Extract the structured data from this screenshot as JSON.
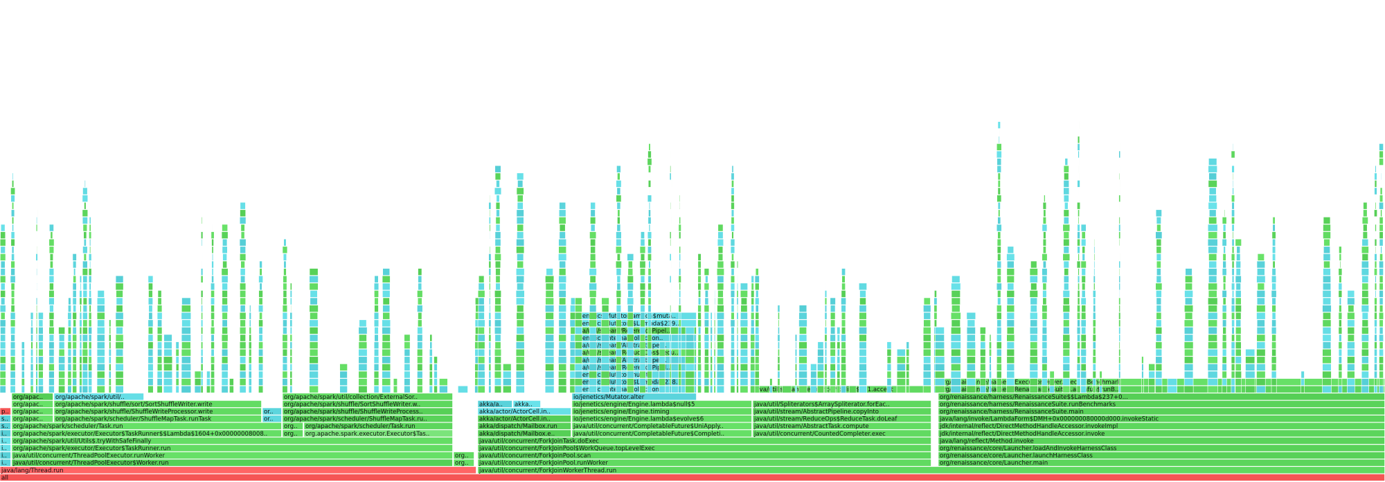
{
  "palette": {
    "java": "#5fd85f",
    "jit": "#5fd8e0",
    "native": "#ff5f5f",
    "inlined": "#7fe87f",
    "kernel": "#e8c85f"
  },
  "chart_data": {
    "type": "flamegraph",
    "orientation": "icicle-bottom-up",
    "title": "",
    "xlabel": "",
    "ylabel": "",
    "total_width_units": 2000,
    "root": {
      "name": "all",
      "start": 0,
      "width": 2000,
      "kind": "native"
    },
    "frames": [
      {
        "name": "java/lang/Thread.run",
        "start": 0,
        "width": 688,
        "depth": 1,
        "kind": "native"
      },
      {
        "name": "java/util/concurrent/ForkJoinWorkerThread.run",
        "start": 690,
        "width": 1310,
        "depth": 1,
        "kind": "java"
      },
      {
        "name": "io...",
        "start": 0,
        "width": 16,
        "depth": 2,
        "kind": "jit"
      },
      {
        "name": "java/util/concurrent/ThreadPoolExecutor$Worker.run",
        "start": 17,
        "width": 637,
        "depth": 2,
        "kind": "java"
      },
      {
        "name": "org/sp...",
        "start": 655,
        "width": 30,
        "depth": 2,
        "kind": "java"
      },
      {
        "name": "java/util/concurrent/ForkJoinPool.runWorker",
        "start": 690,
        "width": 655,
        "depth": 2,
        "kind": "java"
      },
      {
        "name": "org/renaissance/core/Launcher.main",
        "start": 1355,
        "width": 645,
        "depth": 2,
        "kind": "java"
      },
      {
        "name": "io...",
        "start": 0,
        "width": 16,
        "depth": 3,
        "kind": "jit"
      },
      {
        "name": "java/util/concurrent/ThreadPoolExecutor.runWorker",
        "start": 17,
        "width": 637,
        "depth": 3,
        "kind": "java"
      },
      {
        "name": "org/sp...",
        "start": 655,
        "width": 30,
        "depth": 3,
        "kind": "java"
      },
      {
        "name": "java/util/concurrent/ForkJoinPool.scan",
        "start": 690,
        "width": 655,
        "depth": 3,
        "kind": "java"
      },
      {
        "name": "org/renaissance/core/Launcher.launchHarnessClass",
        "start": 1355,
        "width": 645,
        "depth": 3,
        "kind": "java"
      },
      {
        "name": "io...",
        "start": 0,
        "width": 16,
        "depth": 4,
        "kind": "jit"
      },
      {
        "name": "org/apache/spark/executor/Executor$TaskRunner.run",
        "start": 17,
        "width": 637,
        "depth": 4,
        "kind": "java"
      },
      {
        "name": "java/util/concurrent/ForkJoinPool$WorkQueue.topLevelExec",
        "start": 690,
        "width": 655,
        "depth": 4,
        "kind": "java"
      },
      {
        "name": "org/renaissance/core/Launcher.loadAndInvokeHarnessClass",
        "start": 1355,
        "width": 645,
        "depth": 4,
        "kind": "java"
      },
      {
        "name": "io...",
        "start": 0,
        "width": 16,
        "depth": 5,
        "kind": "jit"
      },
      {
        "name": "org/apache/spark/util/Utils$.tryWithSafeFinally",
        "start": 17,
        "width": 637,
        "depth": 5,
        "kind": "java"
      },
      {
        "name": "java/util/concurrent/ForkJoinTask.doExec",
        "start": 690,
        "width": 655,
        "depth": 5,
        "kind": "java"
      },
      {
        "name": "java/lang/reflect/Method.invoke",
        "start": 1355,
        "width": 645,
        "depth": 5,
        "kind": "java"
      },
      {
        "name": "io...",
        "start": 0,
        "width": 16,
        "depth": 6,
        "kind": "jit"
      },
      {
        "name": "org/apache/spark/executor/Executor$TaskRunner$$Lambda$1604+0x000000080082698.apply",
        "start": 17,
        "width": 390,
        "depth": 6,
        "kind": "java"
      },
      {
        "name": "org/a...",
        "start": 408,
        "width": 30,
        "depth": 6,
        "kind": "java"
      },
      {
        "name": "org.apache.spark.executor.Executor$TaskRunner$$Lambda$818+0x0...",
        "start": 439,
        "width": 215,
        "depth": 6,
        "kind": "inlined"
      },
      {
        "name": "akka/dispatch/Mailbox.exec",
        "start": 690,
        "width": 135,
        "depth": 6,
        "kind": "java"
      },
      {
        "name": "java/util/concurrent/CompletableFuture$Completion.exec",
        "start": 826,
        "width": 260,
        "depth": 6,
        "kind": "java"
      },
      {
        "name": "java/util/concurrent/CountedCompleter.exec",
        "start": 1087,
        "width": 258,
        "depth": 6,
        "kind": "java"
      },
      {
        "name": "jdk/internal/reflect/DirectMethodHandleAccessor.invoke",
        "start": 1355,
        "width": 645,
        "depth": 6,
        "kind": "java"
      },
      {
        "name": "su...",
        "start": 0,
        "width": 16,
        "depth": 7,
        "kind": "jit"
      },
      {
        "name": "org/apache/spark/scheduler/Task.run",
        "start": 17,
        "width": 390,
        "depth": 7,
        "kind": "java"
      },
      {
        "name": "org/a...",
        "start": 408,
        "width": 30,
        "depth": 7,
        "kind": "java"
      },
      {
        "name": "org/apache/spark/scheduler/Task.run",
        "start": 439,
        "width": 215,
        "depth": 7,
        "kind": "java"
      },
      {
        "name": "akka/dispatch/Mailbox.run",
        "start": 690,
        "width": 135,
        "depth": 7,
        "kind": "java"
      },
      {
        "name": "java/util/concurrent/CompletableFuture$UniApply.tryFire",
        "start": 826,
        "width": 260,
        "depth": 7,
        "kind": "java"
      },
      {
        "name": "java/util/stream/AbstractTask.compute",
        "start": 1087,
        "width": 258,
        "depth": 7,
        "kind": "java"
      },
      {
        "name": "jdk/internal/reflect/DirectMethodHandleAccessor.invokeImpl",
        "start": 1355,
        "width": 645,
        "depth": 7,
        "kind": "java"
      },
      {
        "name": "su...",
        "start": 0,
        "width": 16,
        "depth": 8,
        "kind": "jit"
      },
      {
        "name": "org/apache/sp...",
        "start": 17,
        "width": 60,
        "depth": 8,
        "kind": "java"
      },
      {
        "name": "org/apache/spark/scheduler/ShuffleMapTask.runTask",
        "start": 78,
        "width": 300,
        "depth": 8,
        "kind": "java"
      },
      {
        "name": "org/...",
        "start": 379,
        "width": 28,
        "depth": 8,
        "kind": "jit"
      },
      {
        "name": "org/apache/spark/scheduler/ShuffleMapTask.runTask",
        "start": 408,
        "width": 246,
        "depth": 8,
        "kind": "java"
      },
      {
        "name": "akka/actor/ActorCell.invoke",
        "start": 690,
        "width": 135,
        "depth": 8,
        "kind": "java"
      },
      {
        "name": "io/jenetics/engine/Engine.lambda$evolve$6",
        "start": 826,
        "width": 260,
        "depth": 8,
        "kind": "java"
      },
      {
        "name": "java/util/stream/ReduceOps$ReduceTask.doLeaf",
        "start": 1087,
        "width": 258,
        "depth": 8,
        "kind": "java"
      },
      {
        "name": "java/lang/invoke/LambdaForm$DMH+0x000000080000d000.invokeStatic",
        "start": 1355,
        "width": 645,
        "depth": 8,
        "kind": "java"
      },
      {
        "name": "pol...",
        "start": 0,
        "width": 16,
        "depth": 9,
        "kind": "native"
      },
      {
        "name": "org/apache/s...",
        "start": 17,
        "width": 60,
        "depth": 9,
        "kind": "java"
      },
      {
        "name": "org/apache/spark/shuffle/ShuffleWriteProcessor.write",
        "start": 78,
        "width": 300,
        "depth": 9,
        "kind": "java"
      },
      {
        "name": "org/...",
        "start": 379,
        "width": 28,
        "depth": 9,
        "kind": "jit"
      },
      {
        "name": "org/apache/spark/shuffle/ShuffleWriteProcessor.write",
        "start": 408,
        "width": 246,
        "depth": 9,
        "kind": "java"
      },
      {
        "name": "akka/actor/ActorCell.invoke",
        "start": 690,
        "width": 135,
        "depth": 9,
        "kind": "jit"
      },
      {
        "name": "io/jenetics/engine/Engine.timing",
        "start": 826,
        "width": 260,
        "depth": 9,
        "kind": "java"
      },
      {
        "name": "java/util/stream/AbstractPipeline.copyInto",
        "start": 1087,
        "width": 258,
        "depth": 9,
        "kind": "java"
      },
      {
        "name": "org/renaissance/harness/RenaissanceSuite.main",
        "start": 1355,
        "width": 645,
        "depth": 9,
        "kind": "java"
      },
      {
        "name": "org/apache/s...",
        "start": 17,
        "width": 60,
        "depth": 10,
        "kind": "java"
      },
      {
        "name": "org/apache/spark/shuffle/sort/SortShuffleWriter.write",
        "start": 78,
        "width": 300,
        "depth": 10,
        "kind": "java"
      },
      {
        "name": "org/apache/spark/shuffle/SortShuffleWriter.write",
        "start": 408,
        "width": 246,
        "depth": 10,
        "kind": "java"
      },
      {
        "name": "akka/actor/dunge...",
        "start": 690,
        "width": 50,
        "depth": 10,
        "kind": "jit"
      },
      {
        "name": "akka/a...",
        "start": 741,
        "width": 40,
        "depth": 10,
        "kind": "jit"
      },
      {
        "name": "io/jenetics/engine/Engine.lambda$null$5",
        "start": 826,
        "width": 260,
        "depth": 10,
        "kind": "java"
      },
      {
        "name": "java/util/Spliterators$ArraySpliterator.forEachRemaining",
        "start": 1087,
        "width": 258,
        "depth": 10,
        "kind": "java"
      },
      {
        "name": "org/renaissance/harness/RenaissanceSuite.runBenchmarks",
        "start": 1355,
        "width": 645,
        "depth": 10,
        "kind": "java"
      },
      {
        "name": "org/apache/s...",
        "start": 17,
        "width": 60,
        "depth": 11,
        "kind": "java"
      },
      {
        "name": "org/apache/spark/util/collection/External...",
        "start": 78,
        "width": 130,
        "depth": 11,
        "kind": "jit"
      },
      {
        "name": "org/apache/spark/util/collection/ExternalSorter.insertAll",
        "start": 408,
        "width": 246,
        "depth": 11,
        "kind": "java"
      },
      {
        "name": "io/jenetics/Mutator.alter",
        "start": 826,
        "width": 180,
        "depth": 11,
        "kind": "jit"
      },
      {
        "name": "org/renaissance/harness/RenaissanceSuite$$Lambda$237+0...",
        "start": 1355,
        "width": 645,
        "depth": 11,
        "kind": "java"
      },
      {
        "name": "io/jenetics/internal/collection/ArraySeq.map",
        "start": 826,
        "width": 180,
        "depth": 12,
        "kind": "jit"
      },
      {
        "name": "java/util/stream/ReferencePipeline$2$1.accept",
        "start": 1087,
        "width": 258,
        "depth": 12,
        "kind": "java"
      },
      {
        "name": "org/renaissance/harness/RenaissanceSuite$.anonfun$runB...",
        "start": 1355,
        "width": 645,
        "depth": 12,
        "kind": "java"
      },
      {
        "name": "io/jenetics/Mutator$$Lambda$2389+0x000000080009a4...",
        "start": 826,
        "width": 180,
        "depth": 13,
        "kind": "jit"
      },
      {
        "name": "org/renaissance/harness/ExecutionDriver.executeBenchmark",
        "start": 1355,
        "width": 645,
        "depth": 13,
        "kind": "java"
      },
      {
        "name": "io/jenetics/Mutator.mutate",
        "start": 826,
        "width": 180,
        "depth": 14,
        "kind": "jit"
      },
      {
        "name": "java/util/stream/ReferencePipeline.collect",
        "start": 826,
        "width": 180,
        "depth": 15,
        "kind": "jit"
      },
      {
        "name": "java/util/stream/AbstractPipeline.evaluate",
        "start": 826,
        "width": 180,
        "depth": 16,
        "kind": "jit"
      },
      {
        "name": "java/util/stream/ReduceOps$ReduceOp.evaluateSeq...",
        "start": 826,
        "width": 180,
        "depth": 17,
        "kind": "java"
      },
      {
        "name": "java/util/stream/AbstractPipeline.copyInto",
        "start": 826,
        "width": 180,
        "depth": 18,
        "kind": "jit"
      },
      {
        "name": "io/jenetics/internal/collection/BaseSeqSplite...",
        "start": 826,
        "width": 180,
        "depth": 19,
        "kind": "jit"
      },
      {
        "name": "java/util/stream/ReferencePipeline$3$1.accept",
        "start": 826,
        "width": 180,
        "depth": 20,
        "kind": "java"
      },
      {
        "name": "io.jenetics.Mutator$$Lambda$2392+0x00000008009...",
        "start": 826,
        "width": 180,
        "depth": 21,
        "kind": "jit"
      },
      {
        "name": "io/jenetics/Mutator.lambda$mutate$2",
        "start": 826,
        "width": 180,
        "depth": 22,
        "kind": "jit"
      }
    ]
  }
}
